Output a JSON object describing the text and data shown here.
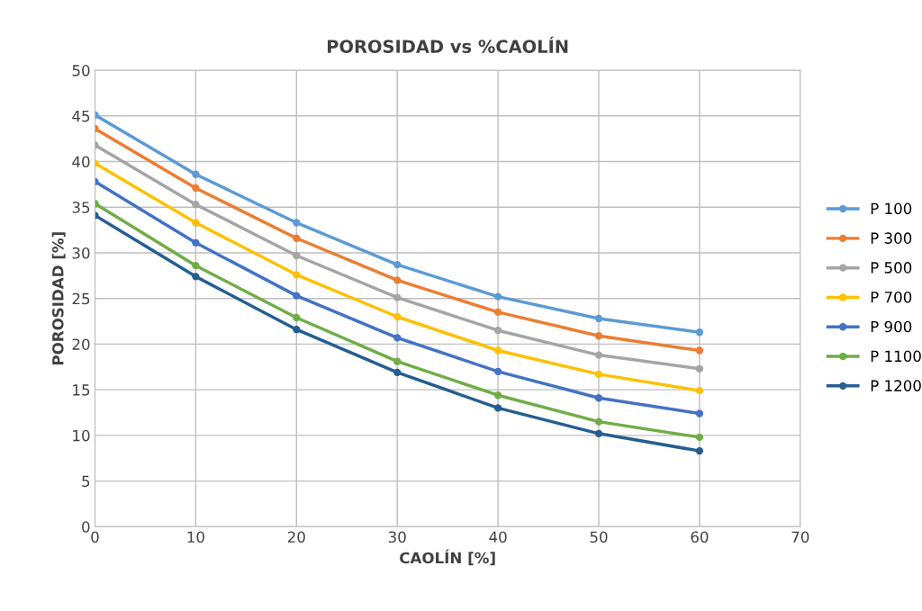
{
  "chart_data": {
    "type": "line",
    "title": "POROSIDAD vs %CAOLÍN",
    "xlabel": "CAOLÍN [%]",
    "ylabel": "POROSIDAD [%]",
    "x": [
      0,
      10,
      20,
      30,
      40,
      50,
      60
    ],
    "series": [
      {
        "name": "P 100",
        "color": "#5b9bd5",
        "values": [
          45.1,
          38.6,
          33.3,
          28.7,
          25.2,
          22.8,
          21.3
        ]
      },
      {
        "name": "P 300",
        "color": "#ed7d31",
        "values": [
          43.6,
          37.1,
          31.6,
          27.0,
          23.5,
          20.9,
          19.3
        ]
      },
      {
        "name": "P 500",
        "color": "#a5a5a5",
        "values": [
          41.8,
          35.3,
          29.7,
          25.1,
          21.5,
          18.8,
          17.3
        ]
      },
      {
        "name": "P 700",
        "color": "#ffc000",
        "values": [
          39.8,
          33.3,
          27.6,
          23.0,
          19.3,
          16.7,
          14.9
        ]
      },
      {
        "name": "P 900",
        "color": "#4472c4",
        "values": [
          37.8,
          31.1,
          25.3,
          20.7,
          17.0,
          14.1,
          12.4
        ]
      },
      {
        "name": "P 1100",
        "color": "#70ad47",
        "values": [
          35.4,
          28.6,
          22.9,
          18.1,
          14.4,
          11.5,
          9.8
        ]
      },
      {
        "name": "P 1200",
        "color": "#255e91",
        "values": [
          34.1,
          27.4,
          21.6,
          16.9,
          13.0,
          10.2,
          8.3
        ]
      }
    ],
    "xlim": [
      0,
      70
    ],
    "xticks": [
      0,
      10,
      20,
      30,
      40,
      50,
      60,
      70
    ],
    "ylim": [
      0,
      50
    ],
    "yticks": [
      0,
      5,
      10,
      15,
      20,
      25,
      30,
      35,
      40,
      45,
      50
    ],
    "grid": true,
    "legend": "right",
    "marker": "circle",
    "line_style": "solid"
  }
}
